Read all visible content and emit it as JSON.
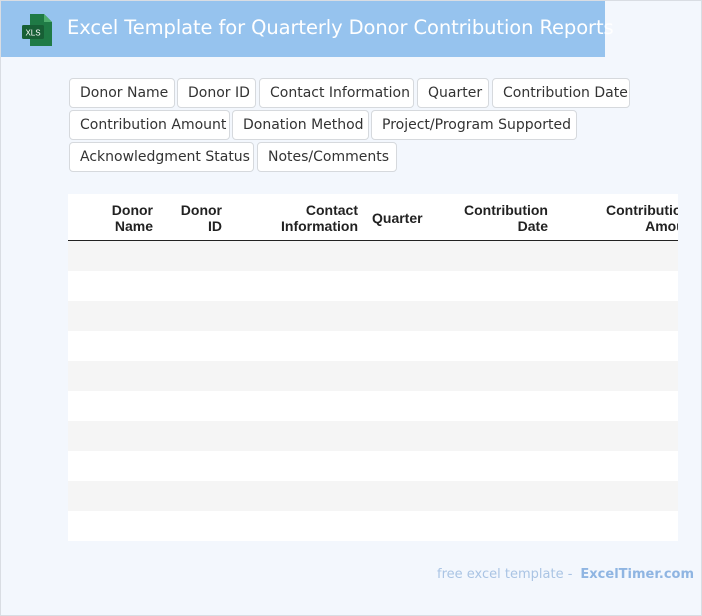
{
  "header": {
    "icon_label": "XLS",
    "title": "Excel Template for Quarterly Donor Contribution Reports"
  },
  "fields": [
    "Donor Name",
    "Donor ID",
    "Contact Information",
    "Quarter",
    "Contribution Date",
    "Contribution Amount",
    "Donation Method",
    "Project/Program Supported",
    "Acknowledgment Status",
    "Notes/Comments"
  ],
  "table": {
    "columns": [
      [
        "Donor",
        "Name"
      ],
      [
        "Donor",
        "ID"
      ],
      [
        "Contact",
        "Information"
      ],
      [
        "Quarter",
        ""
      ],
      [
        "Contribution",
        "Date"
      ],
      [
        "Contribution",
        "Amount"
      ]
    ]
  },
  "footer": {
    "prefix": "free excel template -",
    "brand": "ExcelTimer.com"
  },
  "colors": {
    "header_bg": "#96c3ee",
    "icon_green": "#1f7a45",
    "page_bg": "#f3f7fd"
  }
}
